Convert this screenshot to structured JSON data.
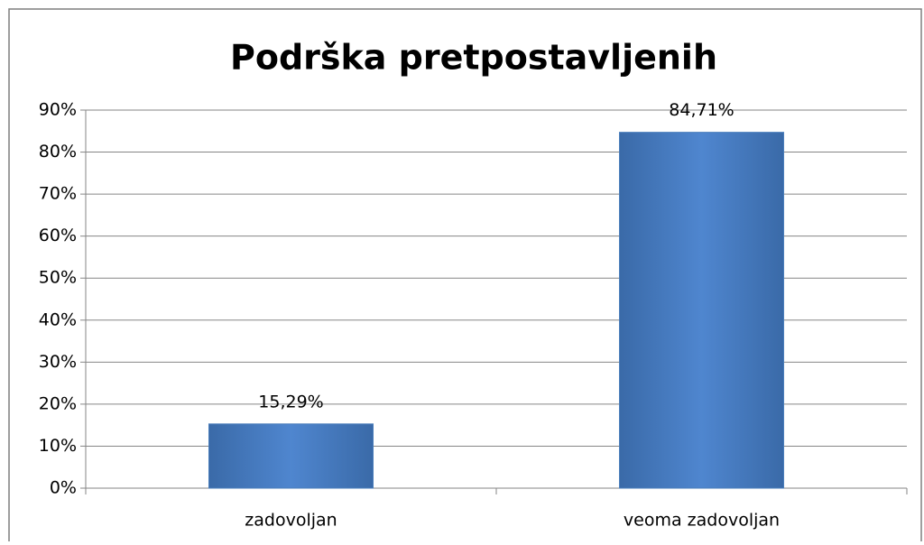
{
  "chart_data": {
    "type": "bar",
    "title": "Podrška pretpostavljenih",
    "categories": [
      "zadovoljan",
      "veoma zadovoljan"
    ],
    "values": [
      15.29,
      84.71
    ],
    "value_labels": [
      "15,29%",
      "84,71%"
    ],
    "color": "#4a7ebb",
    "ylim": [
      0,
      90
    ],
    "yticks": [
      {
        "value": 0,
        "label": "0%"
      },
      {
        "value": 10,
        "label": "10%"
      },
      {
        "value": 20,
        "label": "20%"
      },
      {
        "value": 30,
        "label": "30%"
      },
      {
        "value": 40,
        "label": "40%"
      },
      {
        "value": 50,
        "label": "50%"
      },
      {
        "value": 60,
        "label": "60%"
      },
      {
        "value": 70,
        "label": "70%"
      },
      {
        "value": 80,
        "label": "80%"
      },
      {
        "value": 90,
        "label": "90%"
      }
    ],
    "grid": true
  }
}
